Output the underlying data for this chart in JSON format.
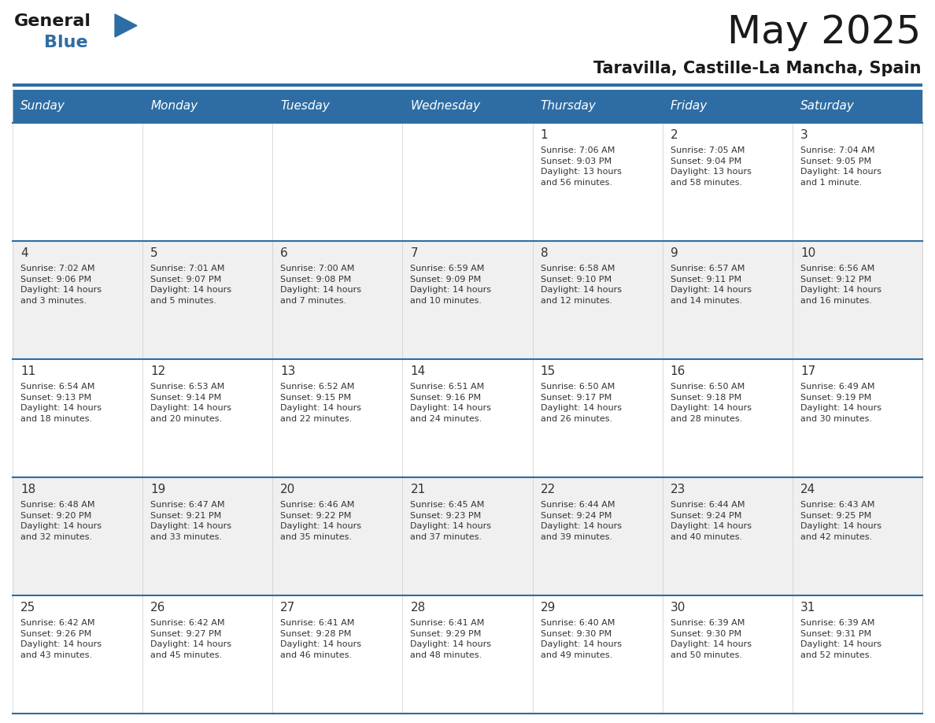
{
  "title": "May 2025",
  "subtitle": "Taravilla, Castille-La Mancha, Spain",
  "header_color": "#2E6DA4",
  "header_text_color": "#FFFFFF",
  "background_color": "#FFFFFF",
  "cell_bg_white": "#FFFFFF",
  "cell_bg_gray": "#F0F0F0",
  "text_color": "#333333",
  "divider_color": "#2E6DA4",
  "grid_line_color": "#CCCCCC",
  "day_headers": [
    "Sunday",
    "Monday",
    "Tuesday",
    "Wednesday",
    "Thursday",
    "Friday",
    "Saturday"
  ],
  "weeks": [
    [
      {
        "day": "",
        "text": ""
      },
      {
        "day": "",
        "text": ""
      },
      {
        "day": "",
        "text": ""
      },
      {
        "day": "",
        "text": ""
      },
      {
        "day": "1",
        "text": "Sunrise: 7:06 AM\nSunset: 9:03 PM\nDaylight: 13 hours\nand 56 minutes."
      },
      {
        "day": "2",
        "text": "Sunrise: 7:05 AM\nSunset: 9:04 PM\nDaylight: 13 hours\nand 58 minutes."
      },
      {
        "day": "3",
        "text": "Sunrise: 7:04 AM\nSunset: 9:05 PM\nDaylight: 14 hours\nand 1 minute."
      }
    ],
    [
      {
        "day": "4",
        "text": "Sunrise: 7:02 AM\nSunset: 9:06 PM\nDaylight: 14 hours\nand 3 minutes."
      },
      {
        "day": "5",
        "text": "Sunrise: 7:01 AM\nSunset: 9:07 PM\nDaylight: 14 hours\nand 5 minutes."
      },
      {
        "day": "6",
        "text": "Sunrise: 7:00 AM\nSunset: 9:08 PM\nDaylight: 14 hours\nand 7 minutes."
      },
      {
        "day": "7",
        "text": "Sunrise: 6:59 AM\nSunset: 9:09 PM\nDaylight: 14 hours\nand 10 minutes."
      },
      {
        "day": "8",
        "text": "Sunrise: 6:58 AM\nSunset: 9:10 PM\nDaylight: 14 hours\nand 12 minutes."
      },
      {
        "day": "9",
        "text": "Sunrise: 6:57 AM\nSunset: 9:11 PM\nDaylight: 14 hours\nand 14 minutes."
      },
      {
        "day": "10",
        "text": "Sunrise: 6:56 AM\nSunset: 9:12 PM\nDaylight: 14 hours\nand 16 minutes."
      }
    ],
    [
      {
        "day": "11",
        "text": "Sunrise: 6:54 AM\nSunset: 9:13 PM\nDaylight: 14 hours\nand 18 minutes."
      },
      {
        "day": "12",
        "text": "Sunrise: 6:53 AM\nSunset: 9:14 PM\nDaylight: 14 hours\nand 20 minutes."
      },
      {
        "day": "13",
        "text": "Sunrise: 6:52 AM\nSunset: 9:15 PM\nDaylight: 14 hours\nand 22 minutes."
      },
      {
        "day": "14",
        "text": "Sunrise: 6:51 AM\nSunset: 9:16 PM\nDaylight: 14 hours\nand 24 minutes."
      },
      {
        "day": "15",
        "text": "Sunrise: 6:50 AM\nSunset: 9:17 PM\nDaylight: 14 hours\nand 26 minutes."
      },
      {
        "day": "16",
        "text": "Sunrise: 6:50 AM\nSunset: 9:18 PM\nDaylight: 14 hours\nand 28 minutes."
      },
      {
        "day": "17",
        "text": "Sunrise: 6:49 AM\nSunset: 9:19 PM\nDaylight: 14 hours\nand 30 minutes."
      }
    ],
    [
      {
        "day": "18",
        "text": "Sunrise: 6:48 AM\nSunset: 9:20 PM\nDaylight: 14 hours\nand 32 minutes."
      },
      {
        "day": "19",
        "text": "Sunrise: 6:47 AM\nSunset: 9:21 PM\nDaylight: 14 hours\nand 33 minutes."
      },
      {
        "day": "20",
        "text": "Sunrise: 6:46 AM\nSunset: 9:22 PM\nDaylight: 14 hours\nand 35 minutes."
      },
      {
        "day": "21",
        "text": "Sunrise: 6:45 AM\nSunset: 9:23 PM\nDaylight: 14 hours\nand 37 minutes."
      },
      {
        "day": "22",
        "text": "Sunrise: 6:44 AM\nSunset: 9:24 PM\nDaylight: 14 hours\nand 39 minutes."
      },
      {
        "day": "23",
        "text": "Sunrise: 6:44 AM\nSunset: 9:24 PM\nDaylight: 14 hours\nand 40 minutes."
      },
      {
        "day": "24",
        "text": "Sunrise: 6:43 AM\nSunset: 9:25 PM\nDaylight: 14 hours\nand 42 minutes."
      }
    ],
    [
      {
        "day": "25",
        "text": "Sunrise: 6:42 AM\nSunset: 9:26 PM\nDaylight: 14 hours\nand 43 minutes."
      },
      {
        "day": "26",
        "text": "Sunrise: 6:42 AM\nSunset: 9:27 PM\nDaylight: 14 hours\nand 45 minutes."
      },
      {
        "day": "27",
        "text": "Sunrise: 6:41 AM\nSunset: 9:28 PM\nDaylight: 14 hours\nand 46 minutes."
      },
      {
        "day": "28",
        "text": "Sunrise: 6:41 AM\nSunset: 9:29 PM\nDaylight: 14 hours\nand 48 minutes."
      },
      {
        "day": "29",
        "text": "Sunrise: 6:40 AM\nSunset: 9:30 PM\nDaylight: 14 hours\nand 49 minutes."
      },
      {
        "day": "30",
        "text": "Sunrise: 6:39 AM\nSunset: 9:30 PM\nDaylight: 14 hours\nand 50 minutes."
      },
      {
        "day": "31",
        "text": "Sunrise: 6:39 AM\nSunset: 9:31 PM\nDaylight: 14 hours\nand 52 minutes."
      }
    ]
  ],
  "logo_text_general": "General",
  "logo_text_blue": "Blue",
  "logo_color_general": "#1a1a1a",
  "logo_color_blue": "#2E6DA4",
  "logo_triangle_color": "#2E6DA4",
  "title_fontsize": 36,
  "subtitle_fontsize": 15,
  "header_fontsize": 11,
  "day_num_fontsize": 11,
  "cell_text_fontsize": 8
}
